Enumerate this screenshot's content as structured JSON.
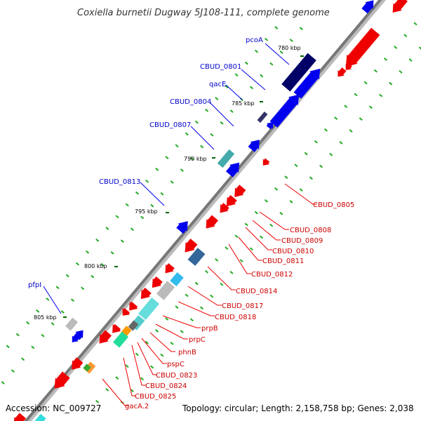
{
  "title": "Coxiella burnetii Dugway 5J108-111, complete genome",
  "footer": {
    "accession": "Accession: NC_009727",
    "topology": "Topology: circular; Length: 2,158,758 bp; Genes: 2,038"
  },
  "colors": {
    "forward": "#0000ee",
    "reverse": "#ee0000",
    "label_forward": "#0000cc",
    "label_reverse": "#cc0000",
    "backbone": "#777777",
    "dots": "#22aa22"
  },
  "ticks": [
    {
      "label": "780 kbp"
    },
    {
      "label": "785 kbp"
    },
    {
      "label": "790 kbp"
    },
    {
      "label": "795 kbp"
    },
    {
      "label": "800 kbp"
    },
    {
      "label": "805 kbp"
    }
  ],
  "forward_labels": [
    "pcoA",
    "CBUD_0801",
    "qacE",
    "CBUD_0804",
    "CBUD_0807",
    "CBUD_0813",
    "pfpI"
  ],
  "reverse_labels": [
    "CBUD_0805",
    "CBUD_0808",
    "CBUD_0809",
    "CBUD_0810",
    "CBUD_0811",
    "CBUD_0812",
    "CBUD_0814",
    "CBUD_0817",
    "CBUD_0818",
    "prpB",
    "prpC",
    "phnB",
    "pspC",
    "CBUD_0823",
    "CBUD_0824",
    "CBUD_0825",
    "gacA.2"
  ]
}
